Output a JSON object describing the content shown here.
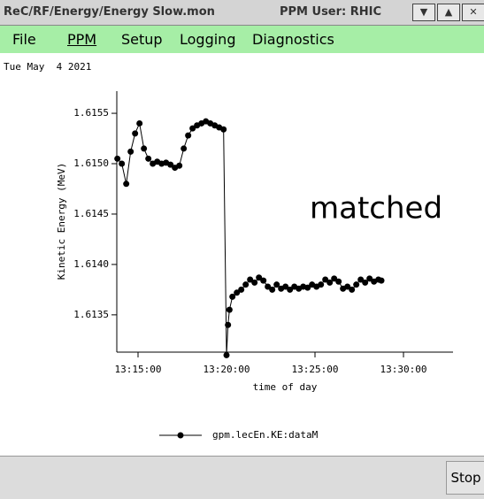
{
  "window": {
    "title": "ReC/RF/Energy/Energy Slow.mon",
    "user": "PPM User: RHIC"
  },
  "menu": [
    "File",
    "PPM",
    "Setup",
    "Logging",
    "Diagnostics"
  ],
  "date": "Tue May  4 2021",
  "annotation": "matched",
  "button": "Stop",
  "chart_data": {
    "type": "line",
    "xlabel": "time of day",
    "ylabel": "Kinetic Energy (MeV)",
    "x": [
      47630,
      47645,
      47660,
      47675,
      47690,
      47705,
      47720,
      47735,
      47750,
      47765,
      47780,
      47795,
      47810,
      47825,
      47840,
      47855,
      47870,
      47885,
      47900,
      47915,
      47930,
      47945,
      47960,
      47975,
      47990,
      48000,
      48005,
      48010,
      48020,
      48035,
      48050,
      48065,
      48080,
      48095,
      48110,
      48125,
      48140,
      48155,
      48170,
      48185,
      48200,
      48215,
      48230,
      48245,
      48260,
      48275,
      48290,
      48305,
      48320,
      48335,
      48350,
      48365,
      48380,
      48395,
      48410,
      48425,
      48440,
      48455,
      48470,
      48485,
      48500,
      48515,
      48525
    ],
    "series": [
      {
        "name": "gpm.lecEn.KE:dataM",
        "color": "#000000",
        "values": [
          1.61505,
          1.615,
          1.6148,
          1.61512,
          1.6153,
          1.6154,
          1.61515,
          1.61505,
          1.615,
          1.61502,
          1.615,
          1.61501,
          1.61499,
          1.61496,
          1.61498,
          1.61515,
          1.61528,
          1.61535,
          1.61538,
          1.6154,
          1.61542,
          1.6154,
          1.61538,
          1.61536,
          1.61534,
          1.6131,
          1.6134,
          1.61355,
          1.61368,
          1.61372,
          1.61375,
          1.6138,
          1.61385,
          1.61382,
          1.61387,
          1.61384,
          1.61378,
          1.61375,
          1.6138,
          1.61376,
          1.61378,
          1.61375,
          1.61378,
          1.61376,
          1.61378,
          1.61377,
          1.6138,
          1.61378,
          1.6138,
          1.61385,
          1.61382,
          1.61386,
          1.61383,
          1.61376,
          1.61378,
          1.61375,
          1.6138,
          1.61385,
          1.61382,
          1.61386,
          1.61383,
          1.61385,
          1.61384
        ]
      }
    ],
    "xlim": [
      47628,
      48768
    ],
    "xticks": [
      {
        "value": 47700,
        "label": "13:15:00"
      },
      {
        "value": 48000,
        "label": "13:20:00"
      },
      {
        "value": 48300,
        "label": "13:25:00"
      },
      {
        "value": 48600,
        "label": "13:30:00"
      }
    ],
    "ylim": [
      1.61313,
      1.61572
    ],
    "yticks": [
      {
        "value": 1.6135,
        "label": "1.6135"
      },
      {
        "value": 1.614,
        "label": "1.6140"
      },
      {
        "value": 1.6145,
        "label": "1.6145"
      },
      {
        "value": 1.615,
        "label": "1.6150"
      },
      {
        "value": 1.6155,
        "label": "1.6155"
      }
    ]
  }
}
